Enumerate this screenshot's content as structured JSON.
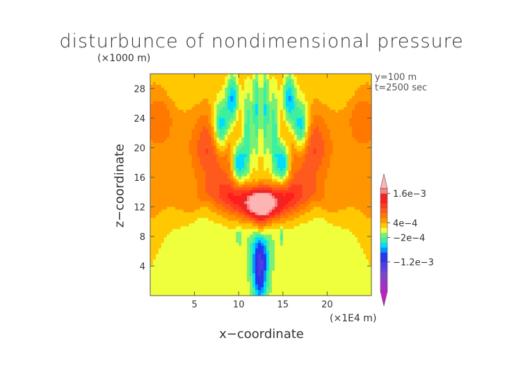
{
  "chart_data": {
    "type": "heatmap",
    "title": "disturbunce of nondimensional pressure",
    "xlabel": "x−coordinate",
    "ylabel": "z−coordinate",
    "x_unit": "(×1E4 m)",
    "y_unit": "(×1000 m)",
    "annotations": [
      "y=100 m",
      "t=2500 sec"
    ],
    "xlim": [
      0,
      25
    ],
    "ylim": [
      0,
      30
    ],
    "x_ticks": [
      5,
      10,
      15,
      20
    ],
    "y_ticks": [
      4,
      8,
      12,
      16,
      20,
      24,
      28
    ],
    "colorbar": {
      "labels": [
        {
          "value": 0.0016,
          "text": "1.6e−3"
        },
        {
          "value": 0.0004,
          "text": "4e−4"
        },
        {
          "value": -0.0002,
          "text": "−2e−4"
        },
        {
          "value": -0.0012,
          "text": "−1.2e−3"
        }
      ],
      "levels": [
        -0.0024,
        -0.0022,
        -0.002,
        -0.0018,
        -0.0016,
        -0.0014,
        -0.0012,
        -0.001,
        -0.0008,
        -0.0006,
        -0.0004,
        -0.0002,
        0,
        0.0002,
        0.0004,
        0.0006,
        0.0008,
        0.001,
        0.0012,
        0.0014,
        0.0016,
        0.0018,
        0.002
      ],
      "colors": [
        "#c81ec8",
        "#b428c8",
        "#a032c8",
        "#8c3cc8",
        "#7846d2",
        "#6440dc",
        "#4b3ce6",
        "#3232e6",
        "#1e3cf0",
        "#0096ff",
        "#00dcff",
        "#3cf0a0",
        "#78f078",
        "#f0ff3c",
        "#ffc800",
        "#ff9600",
        "#ff7800",
        "#ff5a1e",
        "#ff3c1e",
        "#ff1e1e",
        "#e62828",
        "#ff8080",
        "#ffb4b4"
      ],
      "extend": "both"
    },
    "background_value": 0.0001,
    "features": [
      {
        "shape": "plateau",
        "x_center": 12.5,
        "z_top": 15.2,
        "ripple": 0.8,
        "value": 0.0003
      },
      {
        "shape": "blob",
        "x": 12.6,
        "z": 12.5,
        "sx": 1.2,
        "sz": 1.3,
        "value": 0.0016
      },
      {
        "shape": "blob",
        "x": 12.5,
        "z": 12.0,
        "sx": 2.6,
        "sz": 1.7,
        "value": 0.0009
      },
      {
        "shape": "blob",
        "x": 7.5,
        "z": 20.0,
        "sx": 1.8,
        "sz": 3.5,
        "value": 0.0008
      },
      {
        "shape": "blob",
        "x": 17.5,
        "z": 20.0,
        "sx": 1.8,
        "sz": 3.5,
        "value": 0.0008
      },
      {
        "shape": "blob",
        "x": 9.0,
        "z": 13.5,
        "sx": 2.0,
        "sz": 1.5,
        "value": 0.0007
      },
      {
        "shape": "blob",
        "x": 16.0,
        "z": 13.5,
        "sx": 2.0,
        "sz": 1.5,
        "value": 0.0007
      },
      {
        "shape": "blob",
        "x": 3.5,
        "z": 28.0,
        "sx": 2.8,
        "sz": 2.0,
        "value": -0.0002
      },
      {
        "shape": "blob",
        "x": 21.5,
        "z": 28.0,
        "sx": 2.8,
        "sz": 2.0,
        "value": -0.0002
      },
      {
        "shape": "blob",
        "x": 8.0,
        "z": 22.5,
        "sx": 0.7,
        "sz": 2.6,
        "value": -0.0014
      },
      {
        "shape": "blob",
        "x": 17.0,
        "z": 22.5,
        "sx": 0.7,
        "sz": 2.6,
        "value": -0.0014
      },
      {
        "shape": "blob",
        "x": 10.0,
        "z": 18.0,
        "sx": 0.55,
        "sz": 2.2,
        "value": -0.0012
      },
      {
        "shape": "blob",
        "x": 15.0,
        "z": 18.0,
        "sx": 0.55,
        "sz": 2.2,
        "value": -0.0012
      },
      {
        "shape": "blob",
        "x": 9.3,
        "z": 26.5,
        "sx": 0.5,
        "sz": 2.5,
        "value": -0.001
      },
      {
        "shape": "blob",
        "x": 15.7,
        "z": 26.5,
        "sx": 0.5,
        "sz": 2.5,
        "value": -0.001
      },
      {
        "shape": "blob",
        "x": 11.0,
        "z": 22.0,
        "sx": 0.4,
        "sz": 4.5,
        "value": -0.0008
      },
      {
        "shape": "blob",
        "x": 14.0,
        "z": 22.0,
        "sx": 0.4,
        "sz": 4.5,
        "value": -0.0008
      },
      {
        "shape": "blob",
        "x": 12.0,
        "z": 25.0,
        "sx": 0.3,
        "sz": 5.0,
        "value": -0.0008
      },
      {
        "shape": "blob",
        "x": 13.0,
        "z": 25.0,
        "sx": 0.3,
        "sz": 5.0,
        "value": -0.0008
      },
      {
        "shape": "blob",
        "x": 12.4,
        "z": 3.5,
        "sx": 0.55,
        "sz": 3.2,
        "value": -0.0012
      },
      {
        "shape": "blob",
        "x": 12.5,
        "z": 6.5,
        "sx": 0.9,
        "sz": 3.0,
        "value": -0.0004
      },
      {
        "shape": "blob",
        "x": 12.5,
        "z": 9.5,
        "sx": 0.5,
        "sz": 1.5,
        "value": 0.0006
      },
      {
        "shape": "blob",
        "x": 10.0,
        "z": 8.0,
        "sx": 0.15,
        "sz": 0.8,
        "value": -0.0004
      },
      {
        "shape": "blob",
        "x": 14.8,
        "z": 8.0,
        "sx": 0.15,
        "sz": 0.8,
        "value": -0.0004
      },
      {
        "shape": "blob",
        "x": 1.0,
        "z": 24.0,
        "sx": 1.2,
        "sz": 3.0,
        "value": 0.0004
      },
      {
        "shape": "blob",
        "x": 24.0,
        "z": 24.0,
        "sx": 1.2,
        "sz": 3.0,
        "value": 0.0004
      }
    ]
  }
}
